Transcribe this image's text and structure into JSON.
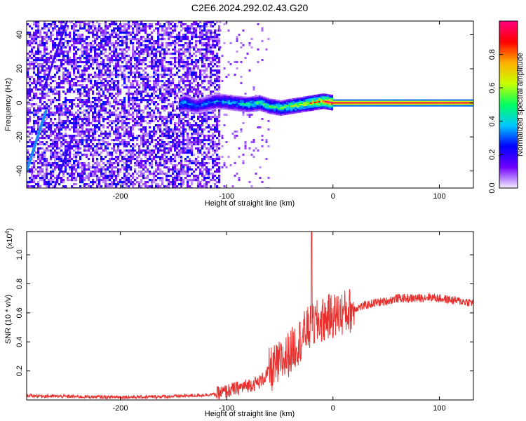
{
  "figure": {
    "title": "C2E6.2024.292.02.43.G20"
  },
  "chart_data": [
    {
      "type": "heatmap",
      "xlabel": "Height of straight line (km)",
      "ylabel": "Frequency (Hz)",
      "xlim": [
        -288,
        132
      ],
      "ylim": [
        -50,
        48
      ],
      "x_ticks": [
        -200,
        -100,
        0,
        100
      ],
      "x_tick_labels": [
        "-200",
        "-100",
        "0",
        "100"
      ],
      "y_ticks": [
        -40,
        -20,
        0,
        20,
        40
      ],
      "y_tick_labels": [
        "-40",
        "-20",
        "0",
        "20",
        "40"
      ],
      "colorbar": {
        "label": "Normalized spectral amplitude",
        "range": [
          0,
          1
        ],
        "ticks": [
          0.0,
          0.2,
          0.4,
          0.6,
          0.8
        ],
        "tick_labels": [
          "0.0",
          "0.2",
          "0.4",
          "0.6",
          "0.8"
        ],
        "colors": [
          "#f4f0fb",
          "#7000ff",
          "#0000ff",
          "#00c8ff",
          "#00ff60",
          "#c8ff00",
          "#ffb000",
          "#ff0000",
          "#ff0080"
        ]
      },
      "noise_region": {
        "x": [
          -288,
          -107
        ],
        "density": "high"
      },
      "sparse_region": {
        "x": [
          -107,
          -60
        ]
      },
      "diagonal_tracks": [
        {
          "x": [
            -288,
            -270
          ],
          "y": [
            -40,
            -5
          ]
        },
        {
          "x": [
            -272,
            -250
          ],
          "y": [
            8,
            48
          ]
        },
        {
          "x": [
            -262,
            -245
          ],
          "y": [
            -50,
            -20
          ]
        }
      ],
      "ridge": [
        {
          "x": -145,
          "y": -1,
          "amp": 0.35
        },
        {
          "x": -140,
          "y": 0,
          "amp": 0.4
        },
        {
          "x": -130,
          "y": -2,
          "amp": 0.3
        },
        {
          "x": -110,
          "y": 1,
          "amp": 0.35
        },
        {
          "x": -95,
          "y": 0,
          "amp": 0.4
        },
        {
          "x": -80,
          "y": -1,
          "amp": 0.45
        },
        {
          "x": -70,
          "y": 0,
          "amp": 0.5
        },
        {
          "x": -60,
          "y": -2,
          "amp": 0.5
        },
        {
          "x": -50,
          "y": -3,
          "amp": 0.55
        },
        {
          "x": -40,
          "y": -2,
          "amp": 0.6
        },
        {
          "x": -30,
          "y": -1,
          "amp": 0.65
        },
        {
          "x": -20,
          "y": 0,
          "amp": 0.75
        },
        {
          "x": -10,
          "y": 1,
          "amp": 0.8
        },
        {
          "x": 0,
          "y": 0,
          "amp": 0.95
        },
        {
          "x": 132,
          "y": 0,
          "amp": 0.95
        }
      ]
    },
    {
      "type": "line",
      "xlabel": "Height of straight line (km)",
      "ylabel": "SNR (10 * v/v)",
      "y_multiplier": "(x10",
      "y_multiplier_exp": "4",
      "y_multiplier_close": ")",
      "xlim": [
        -288,
        132
      ],
      "ylim": [
        0,
        1.16
      ],
      "x_ticks": [
        -200,
        -100,
        0,
        100
      ],
      "x_tick_labels": [
        "-200",
        "-100",
        "0",
        "100"
      ],
      "y_ticks": [
        0.2,
        0.4,
        0.6,
        0.8,
        1.0
      ],
      "y_tick_labels": [
        "0.2",
        "0.4",
        "0.6",
        "0.8",
        "1.0"
      ],
      "series": [
        {
          "color": "#e8312e",
          "x": [
            -288,
            -260,
            -220,
            -180,
            -150,
            -130,
            -110,
            -100,
            -90,
            -80,
            -70,
            -65,
            -60,
            -50,
            -40,
            -35,
            -30,
            -25,
            -20,
            -15,
            -10,
            -5,
            0,
            10,
            20,
            30,
            40,
            50,
            60,
            70,
            80,
            90,
            100,
            110,
            120,
            132
          ],
          "y": [
            0.03,
            0.025,
            0.02,
            0.02,
            0.025,
            0.03,
            0.04,
            0.06,
            0.08,
            0.1,
            0.12,
            0.15,
            0.2,
            0.25,
            0.33,
            0.38,
            0.42,
            0.48,
            0.5,
            0.53,
            0.55,
            0.57,
            0.58,
            0.6,
            0.63,
            0.65,
            0.67,
            0.68,
            0.7,
            0.7,
            0.7,
            0.71,
            0.7,
            0.69,
            0.68,
            0.67
          ],
          "spike": {
            "x": -20,
            "y": 1.16
          }
        }
      ]
    }
  ]
}
